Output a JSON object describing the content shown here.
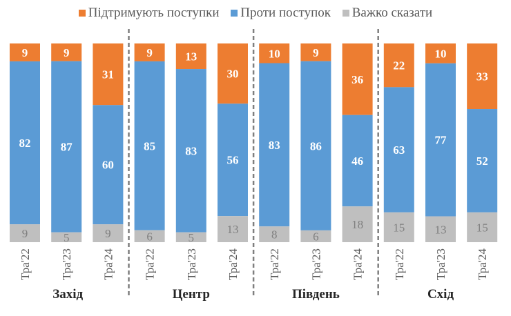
{
  "chart_data": {
    "type": "bar",
    "stacked": true,
    "legend_position": "top",
    "grid": false,
    "legend": [
      {
        "name": "Підтримують поступки",
        "color": "#ED7D31"
      },
      {
        "name": "Проти поступок",
        "color": "#5B9BD5"
      },
      {
        "name": "Важко сказати",
        "color": "#BFBFBF"
      }
    ],
    "groups": [
      "Захід",
      "Центр",
      "Південь",
      "Схід"
    ],
    "categories": [
      "Тра'22",
      "Тра'23",
      "Тра'24"
    ],
    "series": [
      {
        "name": "Підтримують поступки",
        "values": [
          [
            9,
            9,
            31
          ],
          [
            9,
            13,
            30
          ],
          [
            10,
            9,
            36
          ],
          [
            22,
            10,
            33
          ]
        ]
      },
      {
        "name": "Проти поступок",
        "values": [
          [
            82,
            87,
            60
          ],
          [
            85,
            83,
            56
          ],
          [
            83,
            86,
            46
          ],
          [
            63,
            77,
            52
          ]
        ]
      },
      {
        "name": "Важко сказати",
        "values": [
          [
            9,
            5,
            9
          ],
          [
            6,
            5,
            13
          ],
          [
            8,
            6,
            18
          ],
          [
            15,
            13,
            15
          ]
        ]
      }
    ]
  }
}
